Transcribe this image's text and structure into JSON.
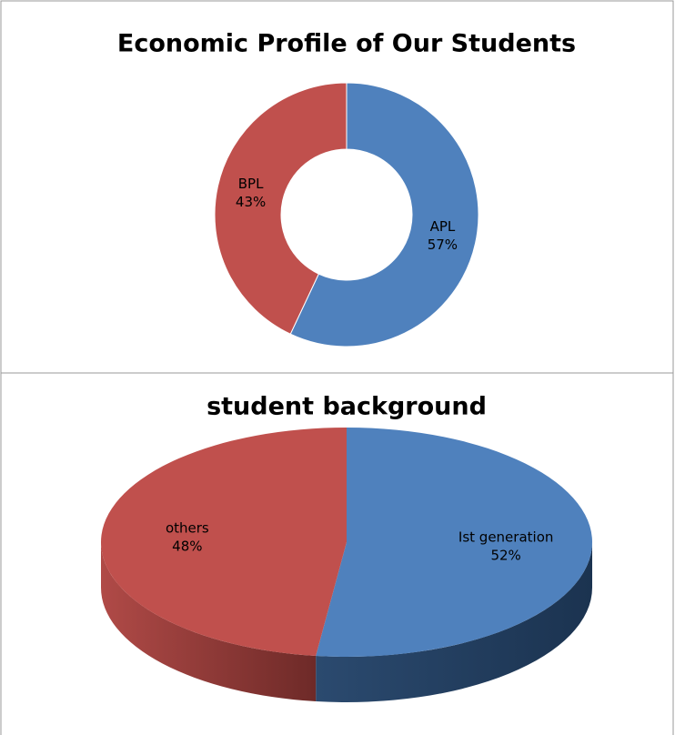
{
  "chart_data": [
    {
      "type": "doughnut",
      "title": "Economic Profile of Our Students",
      "categories": [
        "APL",
        "BPL"
      ],
      "values": [
        57,
        43
      ],
      "value_labels": [
        "57%",
        "43%"
      ],
      "colors": [
        "#4f81bd",
        "#c0504d"
      ]
    },
    {
      "type": "pie",
      "title": "student background",
      "3d": true,
      "categories": [
        "Ist generation",
        "others"
      ],
      "values": [
        52,
        48
      ],
      "value_labels": [
        "52%",
        "48%"
      ],
      "colors": [
        "#4f81bd",
        "#c0504d"
      ]
    }
  ]
}
